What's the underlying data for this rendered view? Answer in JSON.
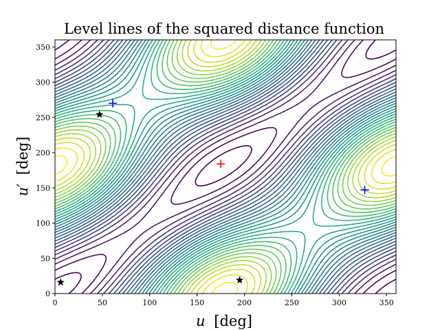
{
  "chart_data": {
    "type": "contour",
    "title": "Level lines of the squared distance function",
    "xlabel_var": "u",
    "xlabel_unit": "[deg]",
    "ylabel_var": "u′",
    "ylabel_unit": "[deg]",
    "xlim": [
      0,
      360
    ],
    "ylim": [
      0,
      360
    ],
    "xticks": [
      0,
      50,
      100,
      150,
      200,
      250,
      300,
      350
    ],
    "yticks": [
      0,
      50,
      100,
      150,
      200,
      250,
      300,
      350
    ],
    "colormap": "viridis",
    "grid": false,
    "levels": 30,
    "markers": [
      {
        "kind": "plus",
        "color": "#ff0000",
        "x": 175,
        "y": 184
      },
      {
        "kind": "plus",
        "color": "#0000ff",
        "x": 61,
        "y": 270
      },
      {
        "kind": "plus",
        "color": "#0000ff",
        "x": 327,
        "y": 147
      },
      {
        "kind": "star",
        "color": "#000000",
        "x": 47,
        "y": 254
      },
      {
        "kind": "star",
        "color": "#000000",
        "x": 6,
        "y": 16
      },
      {
        "kind": "star",
        "color": "#000000",
        "x": 195,
        "y": 19
      }
    ]
  }
}
